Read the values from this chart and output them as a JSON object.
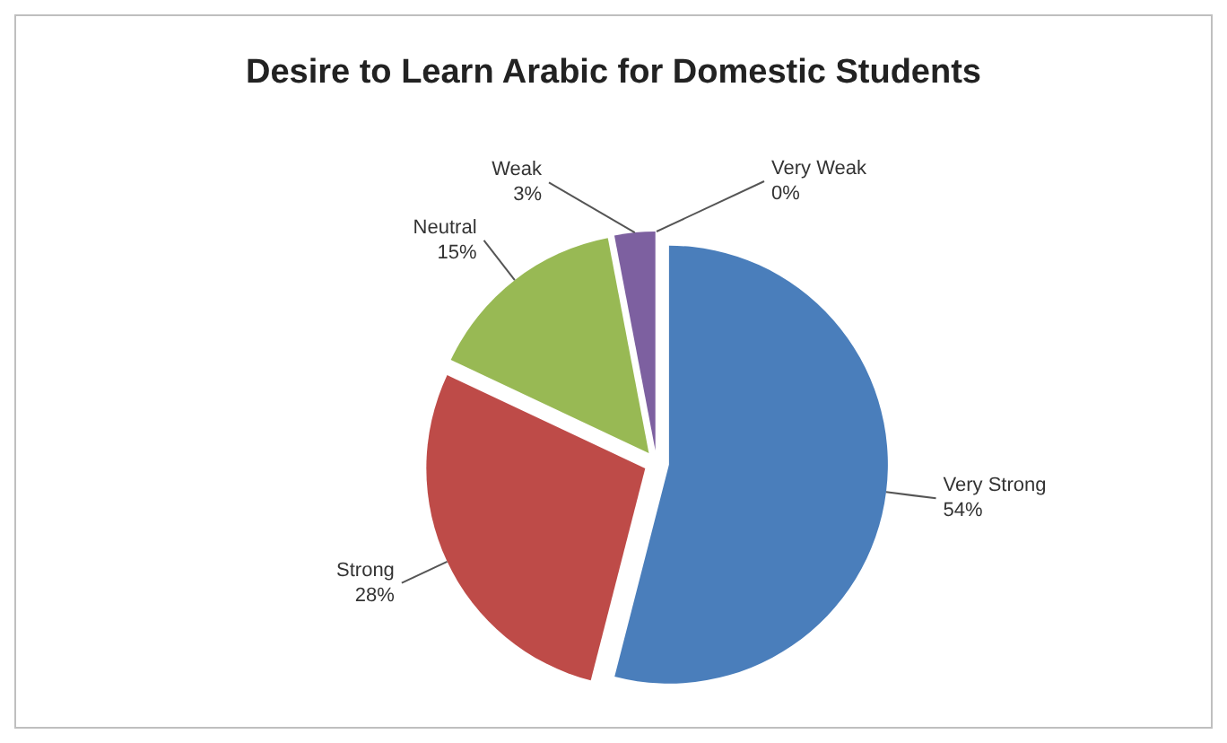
{
  "chart_data": {
    "type": "pie",
    "title": "Desire to Learn Arabic for Domestic Students",
    "categories": [
      "Very Strong",
      "Strong",
      "Neutral",
      "Weak",
      "Very Weak"
    ],
    "values": [
      54,
      28,
      15,
      3,
      0
    ],
    "value_labels": [
      "54%",
      "28%",
      "15%",
      "3%",
      "0%"
    ],
    "colors": [
      "#4a7ebb",
      "#be4b48",
      "#98b954",
      "#7d60a0",
      "#46aac5"
    ]
  }
}
